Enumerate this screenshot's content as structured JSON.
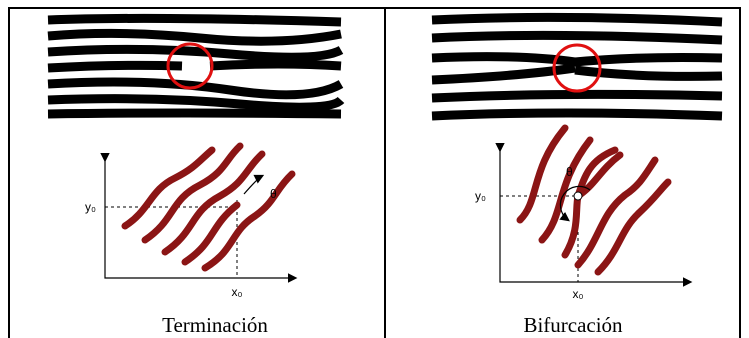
{
  "panels": [
    {
      "caption": "Terminación",
      "y_label": "y₀",
      "x_label": "x₀",
      "angle_label": "θ"
    },
    {
      "caption": "Bifurcación",
      "y_label": "y₀",
      "x_label": "x₀",
      "angle_label": "θ"
    }
  ]
}
